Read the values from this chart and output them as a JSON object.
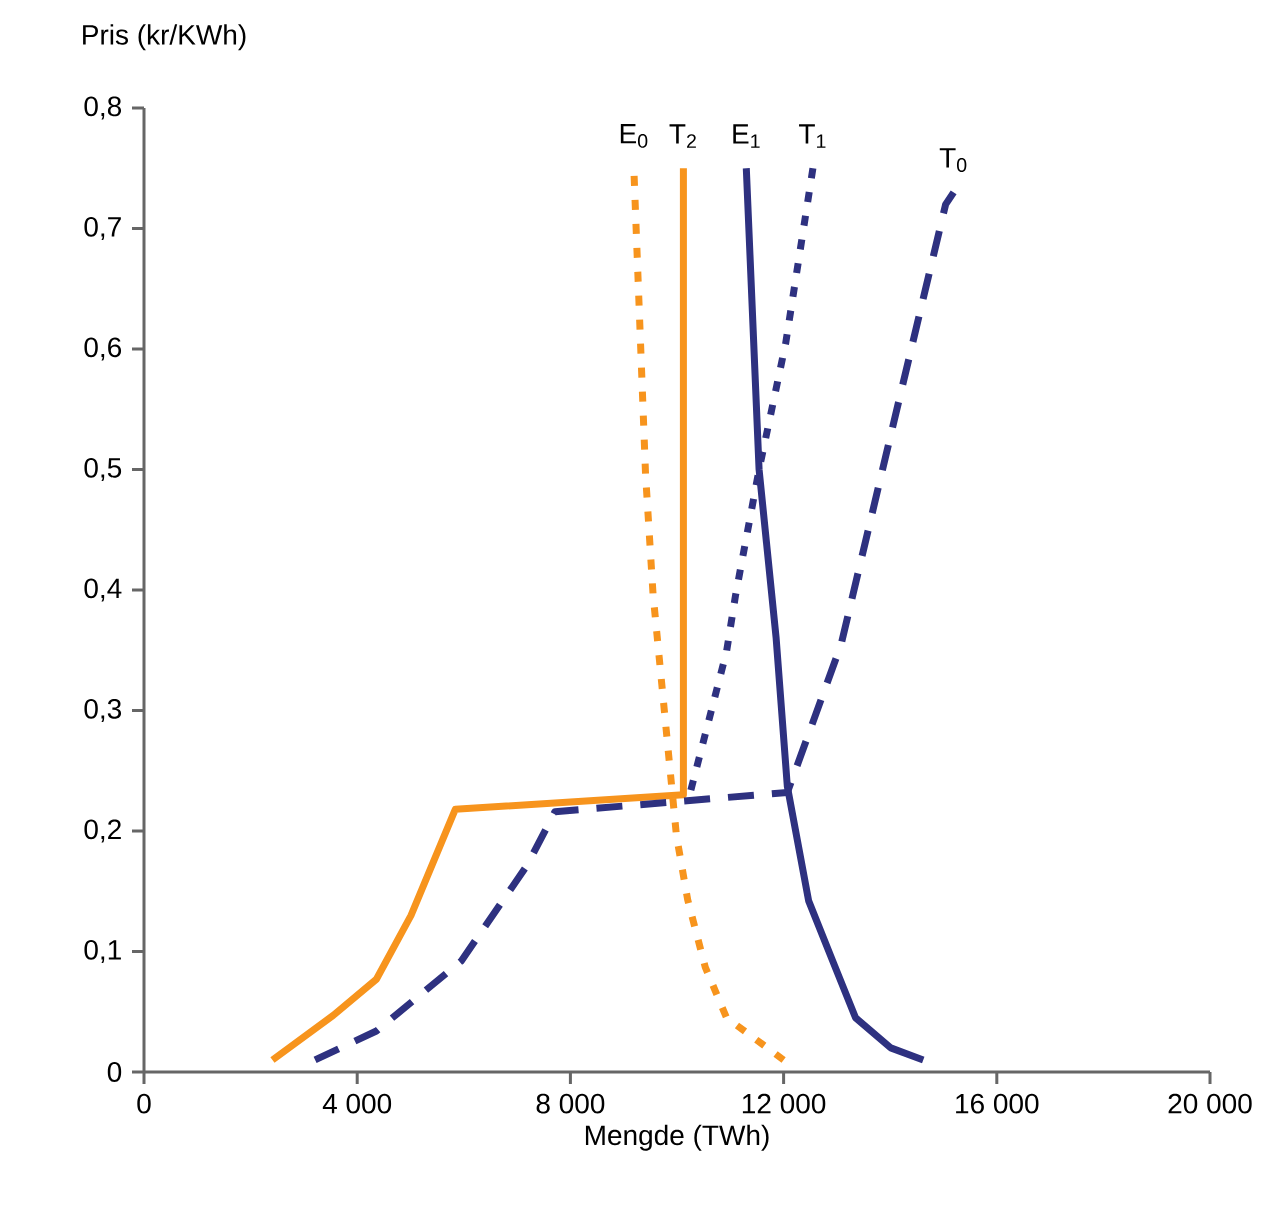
{
  "chart_data": {
    "type": "line",
    "xlabel": "Mengde (TWh)",
    "ylabel": "Pris (kr/KWh)",
    "xlim": [
      0,
      20000
    ],
    "ylim": [
      0,
      0.8
    ],
    "xticks": [
      0,
      {
        "value": 4000,
        "label": "4 000"
      },
      {
        "value": 8000,
        "label": "8 000"
      },
      {
        "value": 12000,
        "label": "12 000"
      },
      {
        "value": 16000,
        "label": "16 000"
      },
      {
        "value": 20000,
        "label": "20 000"
      }
    ],
    "yticks": [
      0,
      {
        "value": 0.1,
        "label": "0,1"
      },
      {
        "value": 0.2,
        "label": "0,2"
      },
      {
        "value": 0.3,
        "label": "0,3"
      },
      {
        "value": 0.4,
        "label": "0,4"
      },
      {
        "value": 0.5,
        "label": "0,5"
      },
      {
        "value": 0.6,
        "label": "0,6"
      },
      {
        "value": 0.7,
        "label": "0,7"
      },
      {
        "value": 0.8,
        "label": "0,8"
      }
    ],
    "series": [
      {
        "name": "E$_{0}$",
        "color": "#f7941d",
        "line_style": "dotted",
        "x": [
          12000,
          10930,
          10530,
          10200,
          9990,
          9550,
          9410,
          9190
        ],
        "values": [
          0.01,
          0.045,
          0.087,
          0.143,
          0.196,
          0.397,
          0.496,
          0.75
        ]
      },
      {
        "name": "T$_{2}$",
        "color": "#f7941d",
        "line_style": "solid",
        "x": [
          2410,
          3550,
          4360,
          5010,
          5840,
          10120,
          10120
        ],
        "values": [
          0.01,
          0.047,
          0.077,
          0.13,
          0.218,
          0.23,
          0.75
        ]
      },
      {
        "name": "E$_{1}$",
        "color": "#2e3180",
        "line_style": "solid",
        "x": [
          14620,
          14010,
          13350,
          12940,
          12470,
          12070,
          11860,
          11540,
          11300
        ],
        "values": [
          0.01,
          0.02,
          0.045,
          0.09,
          0.142,
          0.237,
          0.36,
          0.5,
          0.75
        ]
      },
      {
        "name": "T$_{1}$",
        "color": "#2e3180",
        "line_style": "dotted",
        "x": [
          10260,
          10930,
          11100,
          11540,
          12040,
          12550
        ],
        "values": [
          0.234,
          0.349,
          0.396,
          0.5,
          0.605,
          0.75
        ]
      },
      {
        "name": "T$_{0}$",
        "color": "#2e3180",
        "line_style": "dashed",
        "x": [
          3210,
          4360,
          5950,
          7180,
          7710,
          12070,
          12260,
          13080,
          13910,
          15040,
          15190
        ],
        "values": [
          0.01,
          0.034,
          0.092,
          0.171,
          0.216,
          0.232,
          0.255,
          0.355,
          0.51,
          0.72,
          0.73
        ]
      }
    ]
  }
}
